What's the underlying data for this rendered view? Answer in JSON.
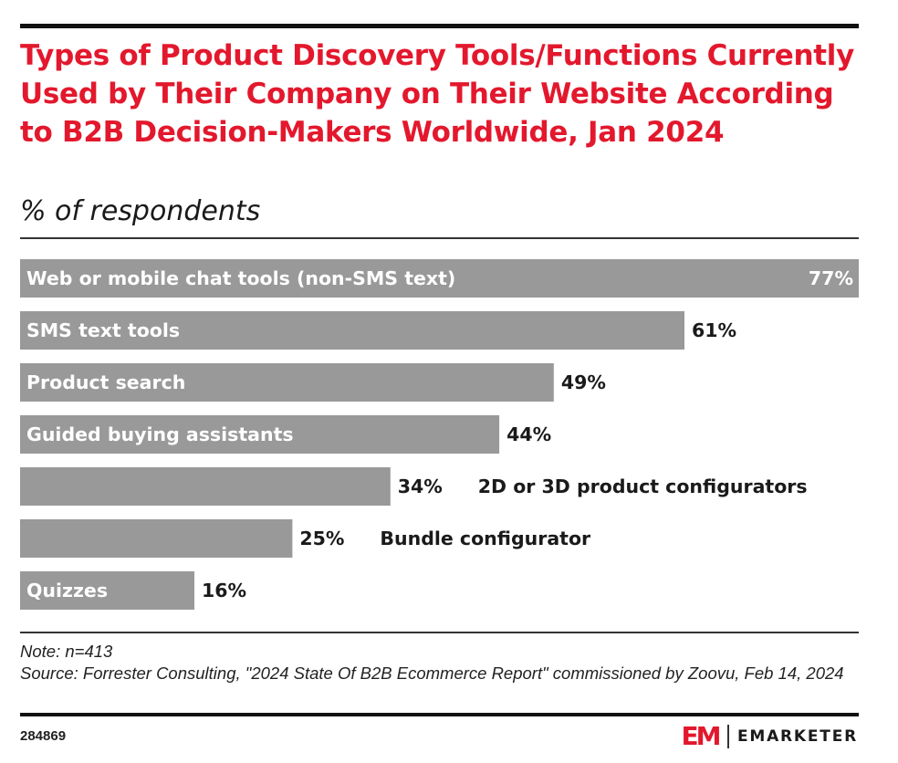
{
  "title": "Types of Product Discovery Tools/Functions Currently Used by Their Company on Their Website According to B2B Decision-Makers Worldwide, Jan 2024",
  "subtitle": "% of respondents",
  "note": "Note: n=413",
  "source": "Source: Forrester Consulting, \"2024 State Of B2B Ecommerce Report\" commissioned by Zoovu, Feb 14, 2024",
  "chart_id": "284869",
  "brand": {
    "mark": "EM",
    "name": "EMARKETER"
  },
  "colors": {
    "title": "#e3182d",
    "bar": "#999999",
    "label_inside": "#ffffff",
    "label_outside": "#1a1a1a"
  },
  "chart_data": {
    "type": "bar",
    "orientation": "horizontal",
    "title": "Types of Product Discovery Tools/Functions Currently Used by Their Company on Their Website According to B2B Decision-Makers Worldwide, Jan 2024",
    "ylabel": "% of respondents",
    "categories": [
      "Web or mobile chat tools (non-SMS text)",
      "SMS text tools",
      "Product search",
      "Guided buying assistants",
      "2D or 3D product configurators",
      "Bundle configurator",
      "Quizzes"
    ],
    "values": [
      77,
      61,
      49,
      44,
      34,
      25,
      16
    ],
    "value_labels": [
      "77%",
      "61%",
      "49%",
      "44%",
      "34%",
      "25%",
      "16%"
    ],
    "xlim": [
      0,
      77
    ],
    "grid": false,
    "legend": "none"
  }
}
